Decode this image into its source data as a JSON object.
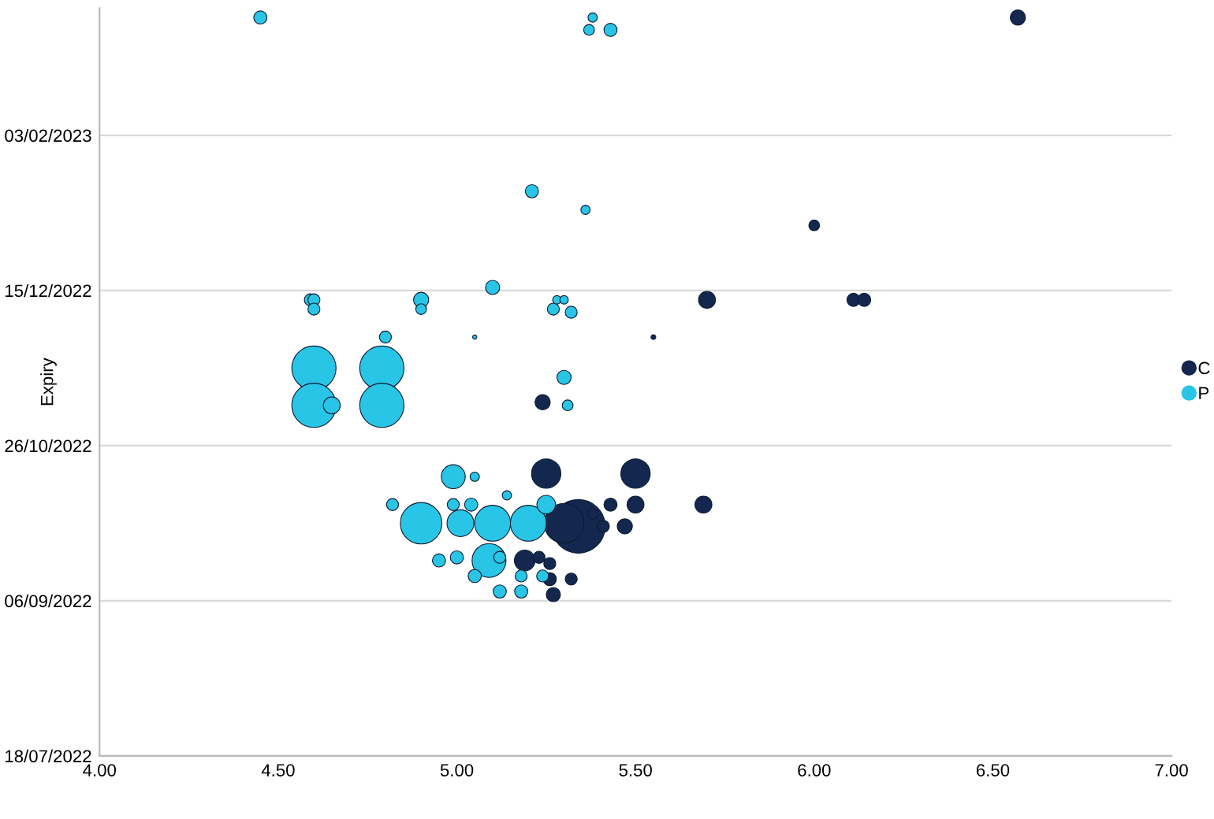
{
  "chart_data": {
    "type": "bubble",
    "ylabel": "Expiry",
    "orientation": "horizontal",
    "xlim": [
      4,
      7
    ],
    "xticks": [
      {
        "value": 4,
        "label": "4.00"
      },
      {
        "value": 4.5,
        "label": "4.50"
      },
      {
        "value": 5,
        "label": "5.00"
      },
      {
        "value": 5.5,
        "label": "5.50"
      },
      {
        "value": 6,
        "label": "6.00"
      },
      {
        "value": 6.5,
        "label": "6.50"
      },
      {
        "value": 7,
        "label": "7.00"
      }
    ],
    "ylim": [
      "2022-07-18",
      "2023-03-16"
    ],
    "yticks": [
      {
        "value": "2022-07-18",
        "label": "18/07/2022"
      },
      {
        "value": "2022-09-06",
        "label": "06/09/2022"
      },
      {
        "value": "2022-10-26",
        "label": "26/10/2022"
      },
      {
        "value": "2022-12-15",
        "label": "15/12/2022"
      },
      {
        "value": "2023-02-03",
        "label": "03/02/2023"
      }
    ],
    "grid": "y",
    "legend": "right",
    "series": [
      {
        "name": "C",
        "color": "#14284f",
        "values": [
          6.57,
          6.0,
          5.7,
          6.11,
          6.14,
          5.55,
          5.24,
          5.25,
          5.5,
          5.43,
          5.5,
          5.69,
          5.3,
          5.34,
          5.38,
          5.41,
          5.47,
          5.19,
          5.23,
          5.26,
          5.26,
          5.32,
          5.27
        ],
        "x": [
          "2023-03-13",
          "2023-01-05",
          "2022-12-12",
          "2022-12-12",
          "2022-12-12",
          "2022-11-30",
          "2022-11-09",
          "2022-10-17",
          "2022-10-17",
          "2022-10-07",
          "2022-10-07",
          "2022-10-07",
          "2022-10-01",
          "2022-09-30",
          "2022-10-04",
          "2022-09-30",
          "2022-09-30",
          "2022-09-19",
          "2022-09-20",
          "2022-09-18",
          "2022-09-13",
          "2022-09-13",
          "2022-09-08"
        ],
        "sizes": [
          0.08,
          0.04,
          0.1,
          0.06,
          0.06,
          0.008,
          0.08,
          0.3,
          0.3,
          0.06,
          0.1,
          0.1,
          0.55,
          1,
          0.04,
          0.05,
          0.08,
          0.15,
          0.05,
          0.05,
          0.06,
          0.05,
          0.07
        ]
      },
      {
        "name": "P",
        "color": "#29c5e6",
        "values": [
          4.45,
          5.38,
          5.37,
          5.43,
          5.21,
          5.36,
          5.1,
          4.59,
          4.6,
          4.6,
          4.9,
          4.9,
          5.28,
          5.3,
          5.27,
          5.32,
          4.8,
          5.05,
          4.6,
          4.79,
          4.6,
          4.79,
          4.65,
          5.3,
          5.31,
          4.99,
          5.05,
          5.14,
          4.82,
          4.99,
          5.04,
          5.25,
          4.9,
          5.01,
          5.1,
          5.2,
          4.95,
          5.0,
          5.09,
          5.12,
          5.05,
          5.18,
          5.24,
          5.12,
          5.18
        ],
        "x": [
          "2023-03-13",
          "2023-03-13",
          "2023-03-09",
          "2023-03-09",
          "2023-01-16",
          "2023-01-10",
          "2022-12-16",
          "2022-12-12",
          "2022-12-12",
          "2022-12-09",
          "2022-12-12",
          "2022-12-09",
          "2022-12-12",
          "2022-12-12",
          "2022-12-09",
          "2022-12-08",
          "2022-11-30",
          "2022-11-30",
          "2022-11-20",
          "2022-11-20",
          "2022-11-08",
          "2022-11-08",
          "2022-11-08",
          "2022-11-17",
          "2022-11-08",
          "2022-10-16",
          "2022-10-16",
          "2022-10-10",
          "2022-10-07",
          "2022-10-07",
          "2022-10-07",
          "2022-10-07",
          "2022-10-01",
          "2022-10-01",
          "2022-10-01",
          "2022-10-01",
          "2022-09-19",
          "2022-09-20",
          "2022-09-19",
          "2022-09-20",
          "2022-09-14",
          "2022-09-14",
          "2022-09-14",
          "2022-09-09",
          "2022-09-09"
        ],
        "sizes": [
          0.06,
          0.03,
          0.04,
          0.06,
          0.06,
          0.03,
          0.07,
          0.05,
          0.05,
          0.05,
          0.08,
          0.04,
          0.025,
          0.025,
          0.05,
          0.05,
          0.05,
          0.006,
          0.68,
          0.68,
          0.68,
          0.68,
          0.1,
          0.07,
          0.04,
          0.2,
          0.03,
          0.03,
          0.05,
          0.05,
          0.06,
          0.12,
          0.6,
          0.25,
          0.45,
          0.45,
          0.06,
          0.06,
          0.4,
          0.05,
          0.06,
          0.05,
          0.05,
          0.06,
          0.06
        ]
      }
    ]
  }
}
